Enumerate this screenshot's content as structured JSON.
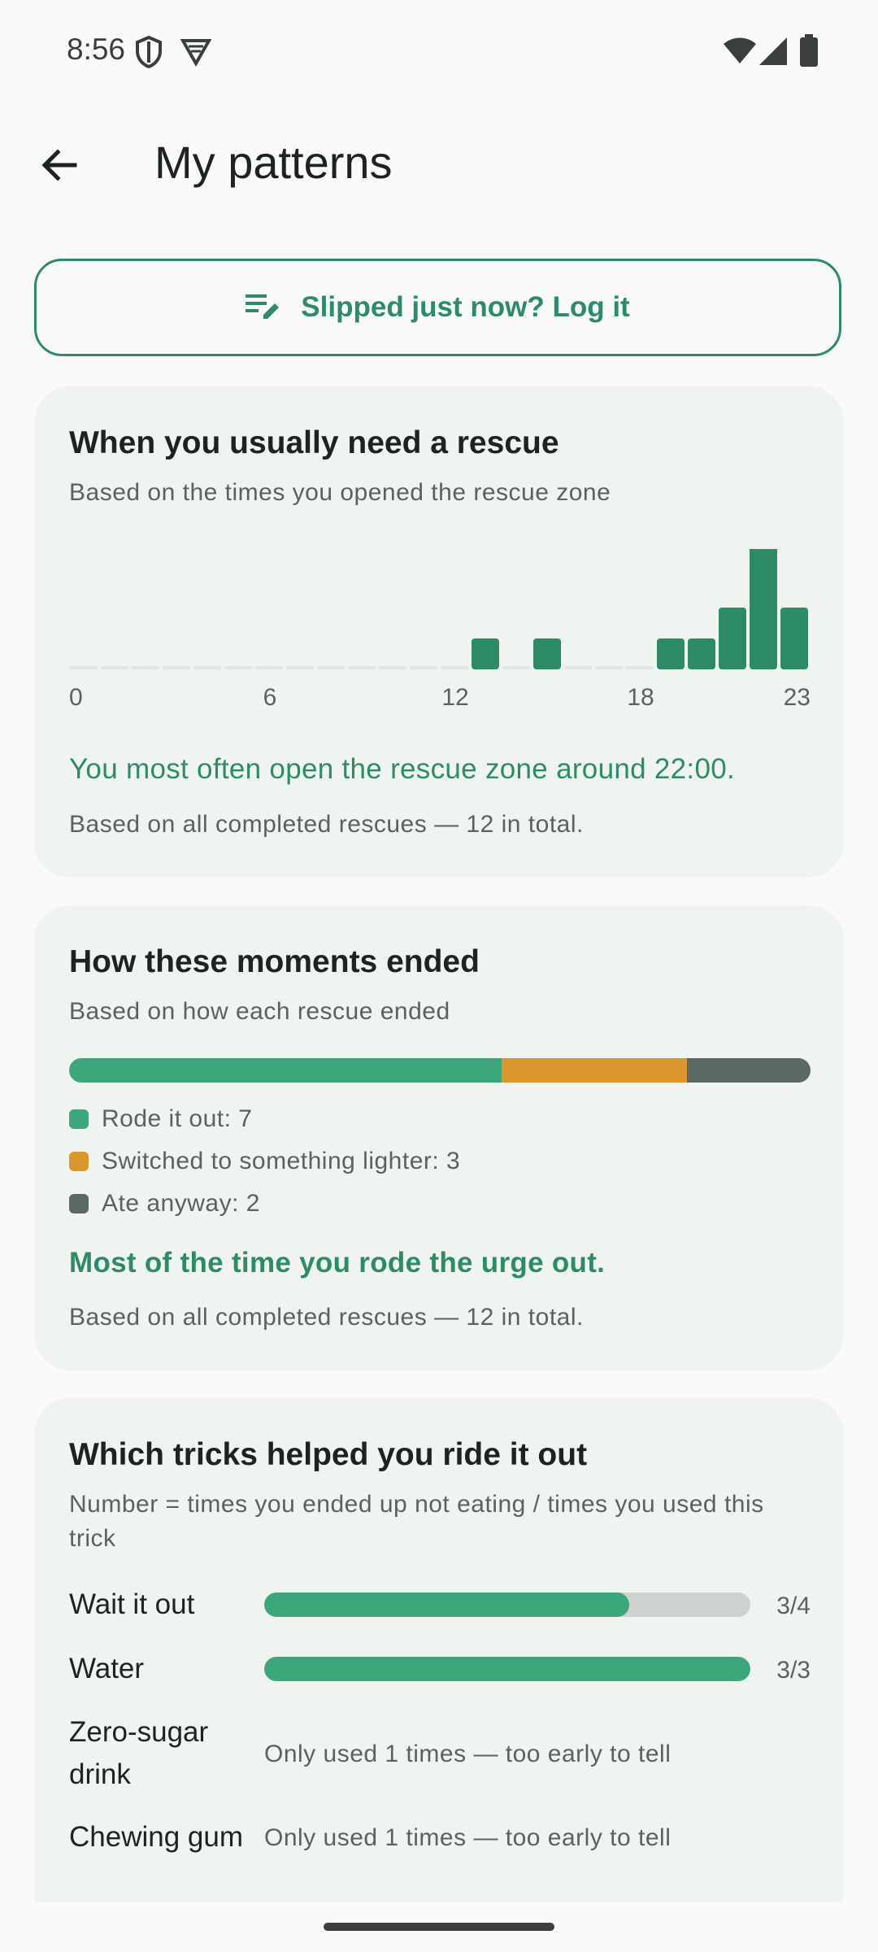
{
  "status_bar": {
    "time": "8:56"
  },
  "app_bar": {
    "title": "My patterns"
  },
  "log_button": {
    "label": "Slipped just now? Log it"
  },
  "rescue_card": {
    "title": "When you usually need a rescue",
    "subtitle": "Based on the times you opened the rescue zone",
    "insight": "You most often open the rescue zone around 22:00.",
    "footnote": "Based on all completed rescues — 12 in total."
  },
  "chart_data": {
    "type": "bar",
    "categories": [
      "0",
      "1",
      "2",
      "3",
      "4",
      "5",
      "6",
      "7",
      "8",
      "9",
      "10",
      "11",
      "12",
      "13",
      "14",
      "15",
      "16",
      "17",
      "18",
      "19",
      "20",
      "21",
      "22",
      "23"
    ],
    "values": [
      0,
      0,
      0,
      0,
      0,
      0,
      0,
      0,
      0,
      0,
      0,
      0,
      0,
      1,
      0,
      1,
      0,
      0,
      0,
      1,
      1,
      2,
      4,
      2
    ],
    "tick_labels": [
      "0",
      "6",
      "12",
      "18",
      "23"
    ],
    "title": "When you usually need a rescue",
    "xlabel": "",
    "ylabel": "",
    "bar_color": "#2e8b68",
    "empty_color": "#e1e6e2"
  },
  "outcome_card": {
    "title": "How these moments ended",
    "subtitle": "Based on how each rescue ended",
    "segments": [
      {
        "label": "Rode it out: 7",
        "value": 7,
        "color": "#3da67a"
      },
      {
        "label": "Switched to something lighter: 3",
        "value": 3,
        "color": "#db962e"
      },
      {
        "label": "Ate anyway: 2",
        "value": 2,
        "color": "#5b6963"
      }
    ],
    "insight": "Most of the time you rode the urge out.",
    "footnote": "Based on all completed rescues — 12 in total."
  },
  "tricks_card": {
    "title": "Which tricks helped you ride it out",
    "subtitle": "Number = times you ended up not eating / times you used this trick",
    "rows": [
      {
        "name": "Wait it out",
        "count": "3/4",
        "fraction": 0.75
      },
      {
        "name": "Water",
        "count": "3/3",
        "fraction": 1.0
      },
      {
        "name": "Zero-sugar drink",
        "note": "Only used 1 times — too early to tell"
      },
      {
        "name": "Chewing gum",
        "note": "Only used 1 times — too early to tell"
      }
    ]
  }
}
